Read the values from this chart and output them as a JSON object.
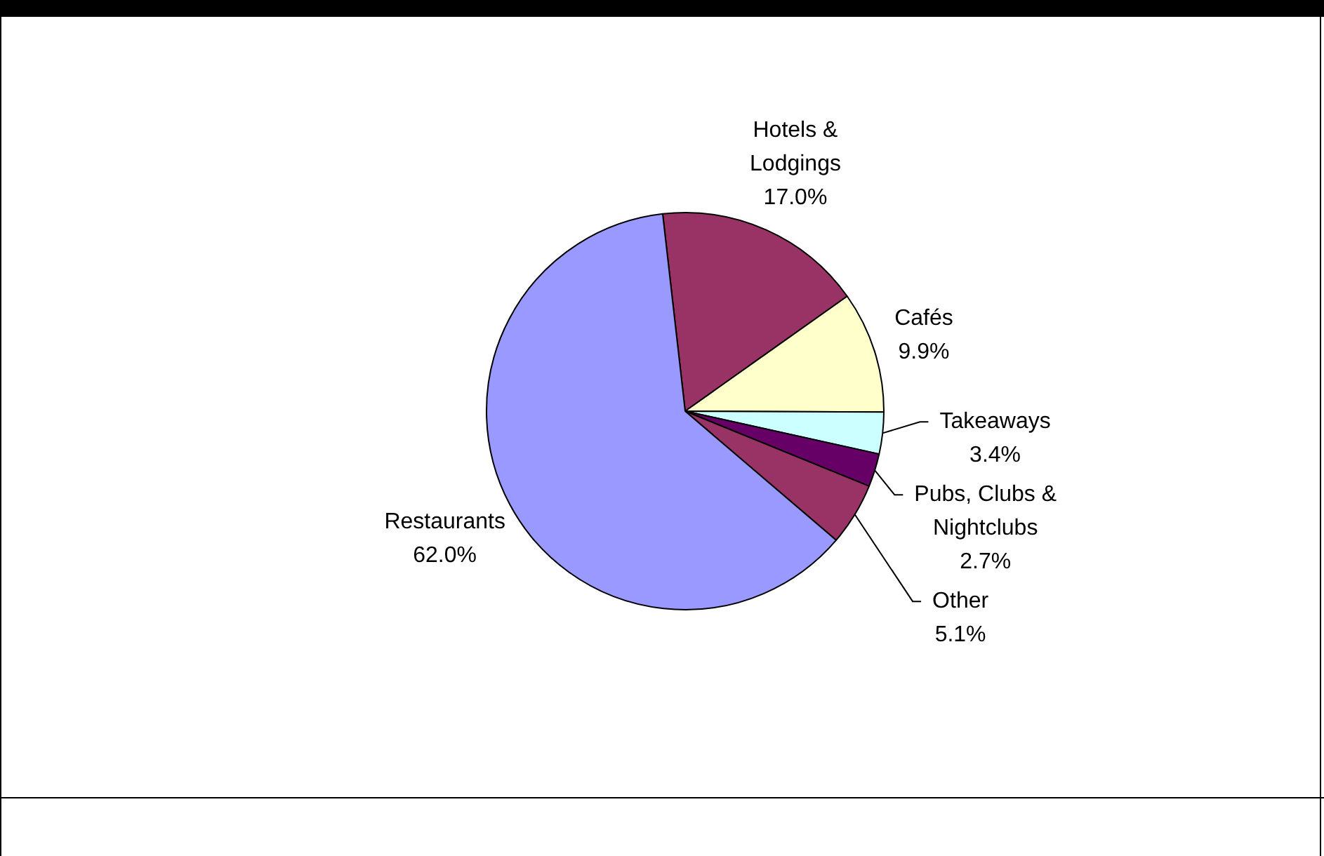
{
  "chart_data": {
    "type": "pie",
    "categories": [
      "Hotels & Lodgings",
      "Cafés",
      "Takeaways",
      "Pubs, Clubs & Nightclubs",
      "Other",
      "Restaurants"
    ],
    "values": [
      17.0,
      9.9,
      3.4,
      2.7,
      5.1,
      62.0
    ],
    "colors": [
      "#993366",
      "#ffffcc",
      "#ccffff",
      "#660066",
      "#993366",
      "#9999ff"
    ],
    "value_labels": [
      "17.0%",
      "9.9%",
      "3.4%",
      "2.7%",
      "5.1%",
      "62.0%"
    ]
  }
}
